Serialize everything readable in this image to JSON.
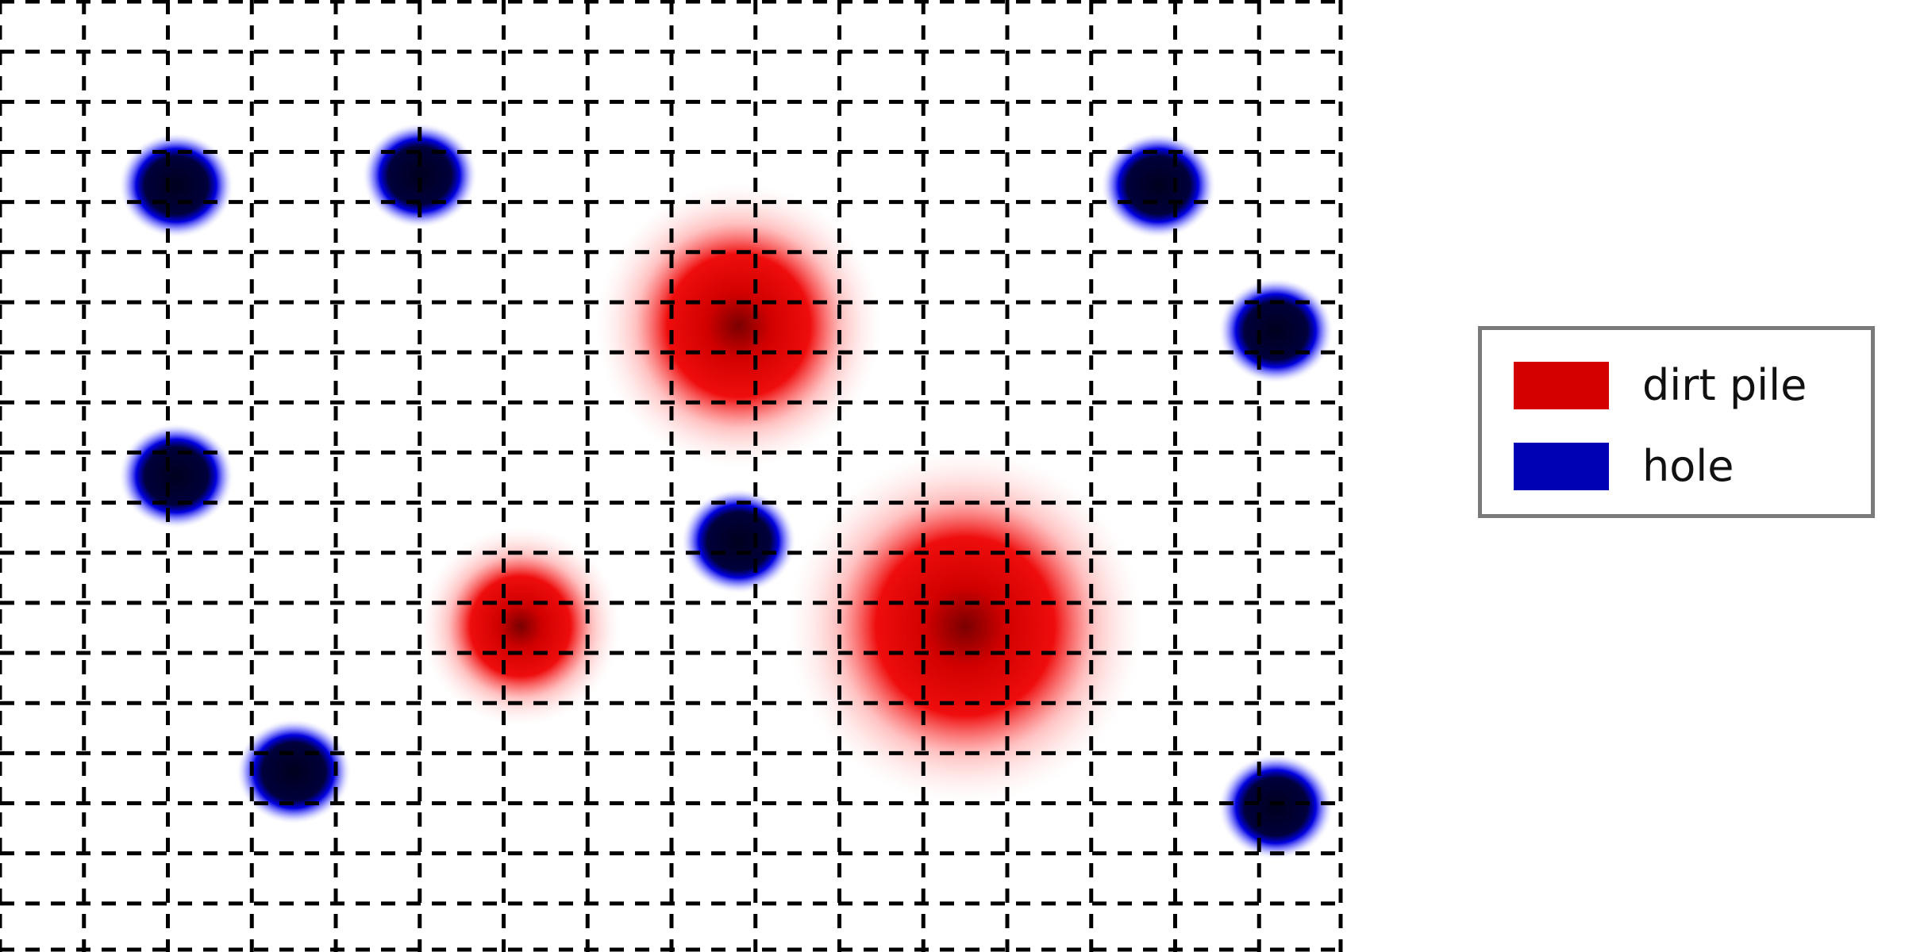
{
  "legend": {
    "items": [
      {
        "label": "dirt pile",
        "color": "#d40000"
      },
      {
        "label": "hole",
        "color": "#0000b4"
      }
    ]
  },
  "grid": {
    "style": "dashed",
    "color": "#000000",
    "columns": 16,
    "rows": 19
  },
  "features": {
    "dirt_piles": [
      {
        "id": 1,
        "column": 8.8,
        "row": 6.5,
        "relative_size": 1.0
      },
      {
        "id": 2,
        "column": 6.2,
        "row": 12.5,
        "relative_size": 0.7
      },
      {
        "id": 3,
        "column": 11.5,
        "row": 12.5,
        "relative_size": 1.25
      }
    ],
    "holes": [
      {
        "id": 1,
        "column": 2.1,
        "row": 3.7
      },
      {
        "id": 2,
        "column": 5.0,
        "row": 3.5
      },
      {
        "id": 3,
        "column": 13.8,
        "row": 3.7
      },
      {
        "id": 4,
        "column": 15.2,
        "row": 6.6
      },
      {
        "id": 5,
        "column": 2.1,
        "row": 9.5
      },
      {
        "id": 6,
        "column": 8.8,
        "row": 10.8
      },
      {
        "id": 7,
        "column": 3.5,
        "row": 15.4
      },
      {
        "id": 8,
        "column": 15.2,
        "row": 16.1
      }
    ]
  }
}
